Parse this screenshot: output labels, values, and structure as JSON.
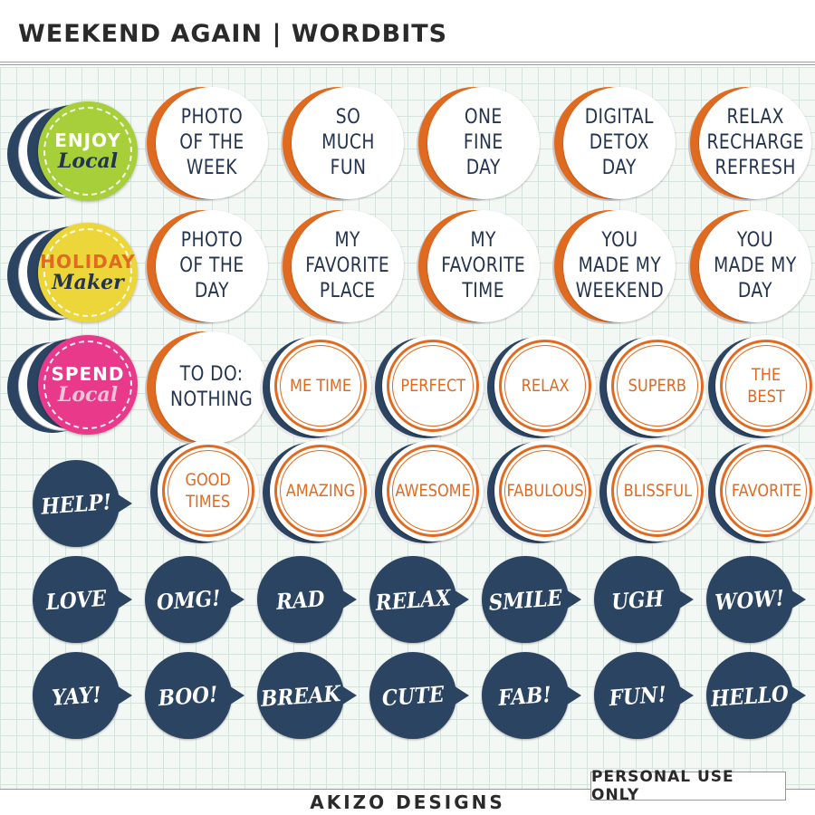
{
  "header": {
    "title": "WEEKEND AGAIN | WORDBITS"
  },
  "footer": {
    "brand": "AKIZO DESIGNS",
    "license": "PERSONAL USE ONLY"
  },
  "colors": {
    "navy": "#2b4462",
    "orange": "#e06b20",
    "lime": "#a6cf3a",
    "yellow": "#ecd63a",
    "pink": "#e8398a",
    "text_navy": "#24344f"
  },
  "badges": [
    {
      "line1": "ENJOY",
      "line2": "Local",
      "face": "#a6cf3a",
      "line1_color": "#ffffff",
      "line2_color": "#24344f"
    },
    {
      "line1": "HOLIDAY",
      "line2": "Maker",
      "face": "#ecd63a",
      "line1_color": "#e06b20",
      "line2_color": "#24344f"
    },
    {
      "line1": "SPEND",
      "line2": "Local",
      "face": "#e8398a",
      "line1_color": "#ffffff",
      "line2_color": "#f3c2d8"
    }
  ],
  "white_circles": [
    "PHOTO\nOF THE\nWEEK",
    "SO\nMUCH\nFUN",
    "ONE\nFINE\nDAY",
    "DIGITAL\nDETOX\nDAY",
    "RELAX\nRECHARGE\nREFRESH",
    "PHOTO\nOF THE\nDAY",
    "MY\nFAVORITE\nPLACE",
    "MY\nFAVORITE\nTIME",
    "YOU\nMADE MY\nWEEKEND",
    "YOU\nMADE MY\nDAY",
    "TO DO:\nNOTHING"
  ],
  "orange_circles": [
    "ME TIME",
    "PERFECT",
    "RELAX",
    "SUPERB",
    "THE BEST",
    "GOOD\nTIMES",
    "AMAZING",
    "AWESOME",
    "FABULOUS",
    "BLISSFUL",
    "FAVORITE"
  ],
  "bubbles": [
    "HELP!",
    "LOVE",
    "OMG!",
    "RAD",
    "RELAX",
    "SMILE",
    "UGH",
    "WOW!",
    "YAY!",
    "BOO!",
    "BREAK",
    "CUTE",
    "FAB!",
    "FUN!",
    "HELLO"
  ]
}
